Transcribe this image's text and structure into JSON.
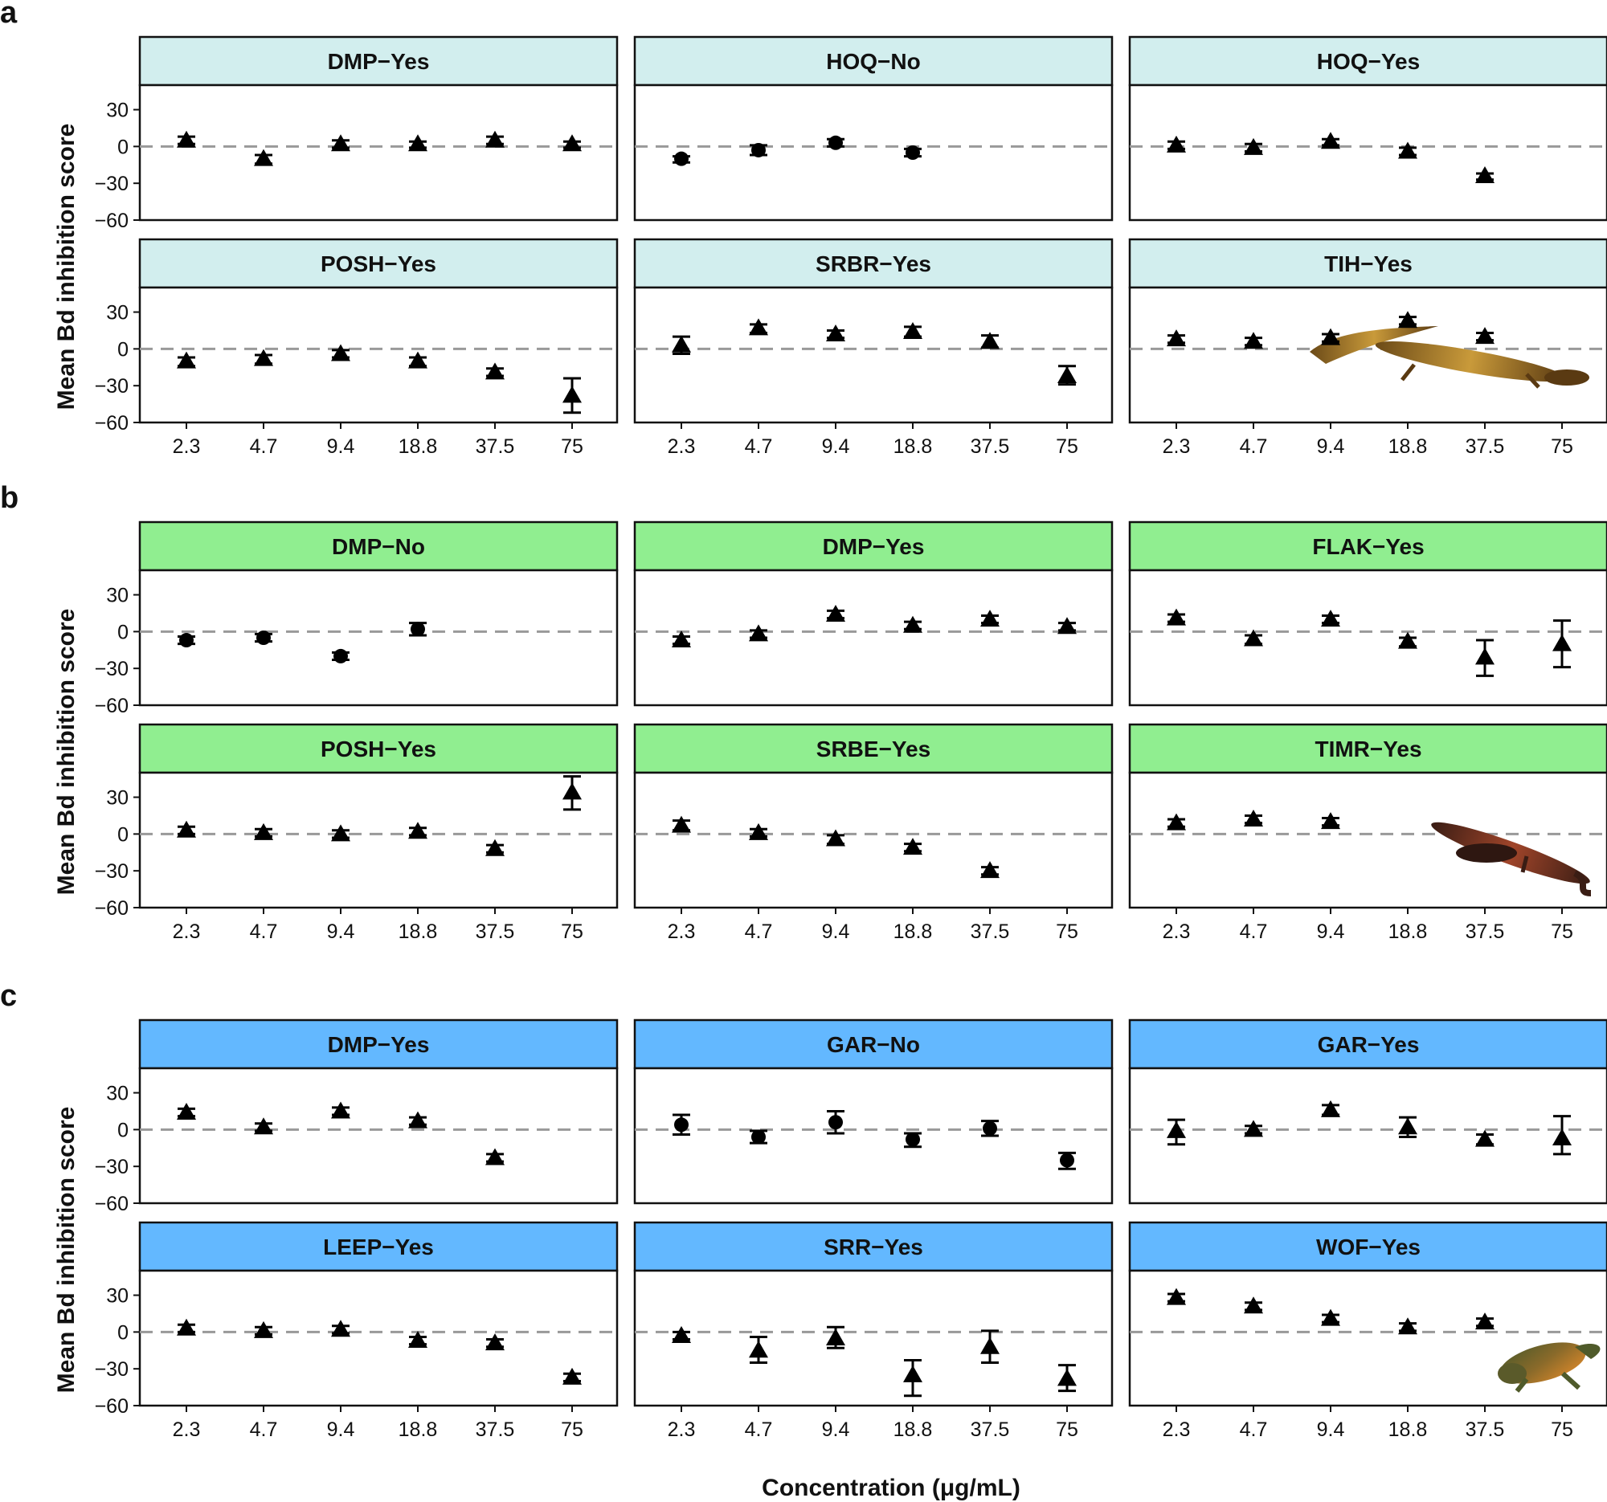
{
  "x_axis_title": "Concentration (μg/mL)",
  "chart_data": {
    "type": "scatter",
    "x_categories": [
      "2.3",
      "4.7",
      "9.4",
      "18.8",
      "37.5",
      "75"
    ],
    "y_ticks": [
      "30",
      "0",
      "−30",
      "−60"
    ],
    "y_tick_values": [
      30,
      0,
      -30,
      -60
    ],
    "ylim": [
      -60,
      50
    ],
    "ylabel": "Mean Bd inhibition score",
    "xlabel": "Concentration (μg/mL)",
    "reference_line": 0,
    "groups": [
      {
        "letter": "a",
        "strip_color": "#d2eeee",
        "panels": [
          {
            "title": "DMP−Yes",
            "points": [
              {
                "x": "2.3",
                "y": 5,
                "lo": 2,
                "hi": 8,
                "shape": "triangle"
              },
              {
                "x": "4.7",
                "y": -10,
                "lo": -14,
                "hi": -7,
                "shape": "triangle"
              },
              {
                "x": "9.4",
                "y": 2,
                "lo": -1,
                "hi": 5,
                "shape": "triangle"
              },
              {
                "x": "18.8",
                "y": 2,
                "lo": -1,
                "hi": 4,
                "shape": "triangle"
              },
              {
                "x": "37.5",
                "y": 5,
                "lo": 2,
                "hi": 8,
                "shape": "triangle"
              },
              {
                "x": "75",
                "y": 2,
                "lo": -1,
                "hi": 4,
                "shape": "triangle"
              }
            ]
          },
          {
            "title": "HOQ−No",
            "points": [
              {
                "x": "2.3",
                "y": -10,
                "lo": -13,
                "hi": -8,
                "shape": "circle"
              },
              {
                "x": "4.7",
                "y": -3,
                "lo": -7,
                "hi": 1,
                "shape": "circle"
              },
              {
                "x": "9.4",
                "y": 3,
                "lo": 0,
                "hi": 6,
                "shape": "circle"
              },
              {
                "x": "18.8",
                "y": -5,
                "lo": -8,
                "hi": -2,
                "shape": "circle"
              }
            ]
          },
          {
            "title": "HOQ−Yes",
            "points": [
              {
                "x": "2.3",
                "y": 1,
                "lo": -2,
                "hi": 4,
                "shape": "triangle"
              },
              {
                "x": "4.7",
                "y": -1,
                "lo": -4,
                "hi": 2,
                "shape": "triangle"
              },
              {
                "x": "9.4",
                "y": 4,
                "lo": 1,
                "hi": 6,
                "shape": "triangle"
              },
              {
                "x": "18.8",
                "y": -4,
                "lo": -7,
                "hi": -1,
                "shape": "triangle"
              },
              {
                "x": "37.5",
                "y": -24,
                "lo": -27,
                "hi": -22,
                "shape": "triangle"
              }
            ]
          },
          {
            "title": "POSH−Yes",
            "points": [
              {
                "x": "2.3",
                "y": -10,
                "lo": -14,
                "hi": -7,
                "shape": "triangle"
              },
              {
                "x": "4.7",
                "y": -8,
                "lo": -12,
                "hi": -5,
                "shape": "triangle"
              },
              {
                "x": "9.4",
                "y": -4,
                "lo": -7,
                "hi": -1,
                "shape": "triangle"
              },
              {
                "x": "18.8",
                "y": -10,
                "lo": -14,
                "hi": -7,
                "shape": "triangle"
              },
              {
                "x": "37.5",
                "y": -19,
                "lo": -22,
                "hi": -16,
                "shape": "triangle"
              },
              {
                "x": "75",
                "y": -38,
                "lo": -52,
                "hi": -24,
                "shape": "triangle"
              }
            ]
          },
          {
            "title": "SRBR−Yes",
            "points": [
              {
                "x": "2.3",
                "y": 3,
                "lo": -4,
                "hi": 10,
                "shape": "triangle"
              },
              {
                "x": "4.7",
                "y": 17,
                "lo": 13,
                "hi": 20,
                "shape": "triangle"
              },
              {
                "x": "9.4",
                "y": 12,
                "lo": 9,
                "hi": 15,
                "shape": "triangle"
              },
              {
                "x": "18.8",
                "y": 14,
                "lo": 10,
                "hi": 18,
                "shape": "triangle"
              },
              {
                "x": "37.5",
                "y": 6,
                "lo": 1,
                "hi": 11,
                "shape": "triangle"
              },
              {
                "x": "75",
                "y": -22,
                "lo": -29,
                "hi": -14,
                "shape": "triangle"
              }
            ]
          },
          {
            "title": "TIH−Yes",
            "image": "salamander-yellow",
            "points": [
              {
                "x": "2.3",
                "y": 8,
                "lo": 5,
                "hi": 11,
                "shape": "triangle"
              },
              {
                "x": "4.7",
                "y": 6,
                "lo": 3,
                "hi": 9,
                "shape": "triangle"
              },
              {
                "x": "9.4",
                "y": 9,
                "lo": 6,
                "hi": 12,
                "shape": "triangle"
              },
              {
                "x": "18.8",
                "y": 23,
                "lo": 20,
                "hi": 26,
                "shape": "triangle"
              },
              {
                "x": "37.5",
                "y": 10,
                "lo": 7,
                "hi": 13,
                "shape": "triangle"
              }
            ]
          }
        ]
      },
      {
        "letter": "b",
        "strip_color": "#90ee90",
        "panels": [
          {
            "title": "DMP−No",
            "points": [
              {
                "x": "2.3",
                "y": -7,
                "lo": -10,
                "hi": -4,
                "shape": "circle"
              },
              {
                "x": "4.7",
                "y": -5,
                "lo": -8,
                "hi": -2,
                "shape": "circle"
              },
              {
                "x": "9.4",
                "y": -20,
                "lo": -23,
                "hi": -17,
                "shape": "circle"
              },
              {
                "x": "18.8",
                "y": 2,
                "lo": -3,
                "hi": 7,
                "shape": "circle"
              }
            ]
          },
          {
            "title": "DMP−Yes",
            "points": [
              {
                "x": "2.3",
                "y": -7,
                "lo": -10,
                "hi": -4,
                "shape": "triangle"
              },
              {
                "x": "4.7",
                "y": -2,
                "lo": -5,
                "hi": 1,
                "shape": "triangle"
              },
              {
                "x": "9.4",
                "y": 14,
                "lo": 11,
                "hi": 17,
                "shape": "triangle"
              },
              {
                "x": "18.8",
                "y": 5,
                "lo": 2,
                "hi": 8,
                "shape": "triangle"
              },
              {
                "x": "37.5",
                "y": 10,
                "lo": 7,
                "hi": 13,
                "shape": "triangle"
              },
              {
                "x": "75",
                "y": 4,
                "lo": 1,
                "hi": 7,
                "shape": "triangle"
              }
            ]
          },
          {
            "title": "FLAK−Yes",
            "points": [
              {
                "x": "2.3",
                "y": 11,
                "lo": 8,
                "hi": 14,
                "shape": "triangle"
              },
              {
                "x": "4.7",
                "y": -6,
                "lo": -10,
                "hi": -3,
                "shape": "triangle"
              },
              {
                "x": "9.4",
                "y": 10,
                "lo": 7,
                "hi": 13,
                "shape": "triangle"
              },
              {
                "x": "18.8",
                "y": -8,
                "lo": -12,
                "hi": -5,
                "shape": "triangle"
              },
              {
                "x": "37.5",
                "y": -21,
                "lo": -36,
                "hi": -7,
                "shape": "triangle"
              },
              {
                "x": "75",
                "y": -10,
                "lo": -29,
                "hi": 9,
                "shape": "triangle"
              }
            ]
          },
          {
            "title": "POSH−Yes",
            "points": [
              {
                "x": "2.3",
                "y": 3,
                "lo": 0,
                "hi": 6,
                "shape": "triangle"
              },
              {
                "x": "4.7",
                "y": 1,
                "lo": -2,
                "hi": 4,
                "shape": "triangle"
              },
              {
                "x": "9.4",
                "y": 0,
                "lo": -3,
                "hi": 3,
                "shape": "triangle"
              },
              {
                "x": "18.8",
                "y": 2,
                "lo": -1,
                "hi": 5,
                "shape": "triangle"
              },
              {
                "x": "37.5",
                "y": -12,
                "lo": -15,
                "hi": -9,
                "shape": "triangle"
              },
              {
                "x": "75",
                "y": 34,
                "lo": 20,
                "hi": 47,
                "shape": "triangle"
              }
            ]
          },
          {
            "title": "SRBE−Yes",
            "points": [
              {
                "x": "2.3",
                "y": 7,
                "lo": 3,
                "hi": 11,
                "shape": "triangle"
              },
              {
                "x": "4.7",
                "y": 1,
                "lo": -2,
                "hi": 4,
                "shape": "triangle"
              },
              {
                "x": "9.4",
                "y": -4,
                "lo": -8,
                "hi": -1,
                "shape": "triangle"
              },
              {
                "x": "18.8",
                "y": -11,
                "lo": -14,
                "hi": -8,
                "shape": "triangle"
              },
              {
                "x": "37.5",
                "y": -30,
                "lo": -33,
                "hi": -27,
                "shape": "triangle"
              }
            ]
          },
          {
            "title": "TIMR−Yes",
            "image": "salamander-red",
            "points": [
              {
                "x": "2.3",
                "y": 9,
                "lo": 6,
                "hi": 12,
                "shape": "triangle"
              },
              {
                "x": "4.7",
                "y": 12,
                "lo": 9,
                "hi": 15,
                "shape": "triangle"
              },
              {
                "x": "9.4",
                "y": 10,
                "lo": 7,
                "hi": 13,
                "shape": "triangle"
              }
            ]
          }
        ]
      },
      {
        "letter": "c",
        "strip_color": "#63b8ff",
        "panels": [
          {
            "title": "DMP−Yes",
            "points": [
              {
                "x": "2.3",
                "y": 14,
                "lo": 11,
                "hi": 17,
                "shape": "triangle"
              },
              {
                "x": "4.7",
                "y": 2,
                "lo": -1,
                "hi": 5,
                "shape": "triangle"
              },
              {
                "x": "9.4",
                "y": 15,
                "lo": 12,
                "hi": 18,
                "shape": "triangle"
              },
              {
                "x": "18.8",
                "y": 7,
                "lo": 4,
                "hi": 10,
                "shape": "triangle"
              },
              {
                "x": "37.5",
                "y": -23,
                "lo": -26,
                "hi": -20,
                "shape": "triangle"
              }
            ]
          },
          {
            "title": "GAR−No",
            "points": [
              {
                "x": "2.3",
                "y": 4,
                "lo": -4,
                "hi": 12,
                "shape": "circle"
              },
              {
                "x": "4.7",
                "y": -6,
                "lo": -11,
                "hi": -1,
                "shape": "circle"
              },
              {
                "x": "9.4",
                "y": 6,
                "lo": -3,
                "hi": 15,
                "shape": "circle"
              },
              {
                "x": "18.8",
                "y": -8,
                "lo": -14,
                "hi": -3,
                "shape": "circle"
              },
              {
                "x": "37.5",
                "y": 1,
                "lo": -5,
                "hi": 7,
                "shape": "circle"
              },
              {
                "x": "75",
                "y": -25,
                "lo": -32,
                "hi": -19,
                "shape": "circle"
              }
            ]
          },
          {
            "title": "GAR−Yes",
            "points": [
              {
                "x": "2.3",
                "y": -1,
                "lo": -12,
                "hi": 8,
                "shape": "triangle"
              },
              {
                "x": "4.7",
                "y": 0,
                "lo": -3,
                "hi": 3,
                "shape": "triangle"
              },
              {
                "x": "9.4",
                "y": 16,
                "lo": 12,
                "hi": 20,
                "shape": "triangle"
              },
              {
                "x": "18.8",
                "y": 2,
                "lo": -6,
                "hi": 10,
                "shape": "triangle"
              },
              {
                "x": "37.5",
                "y": -8,
                "lo": -12,
                "hi": -4,
                "shape": "triangle"
              },
              {
                "x": "75",
                "y": -7,
                "lo": -20,
                "hi": 11,
                "shape": "triangle"
              }
            ]
          },
          {
            "title": "LEEP−Yes",
            "points": [
              {
                "x": "2.3",
                "y": 3,
                "lo": 0,
                "hi": 6,
                "shape": "triangle"
              },
              {
                "x": "4.7",
                "y": 1,
                "lo": -2,
                "hi": 4,
                "shape": "triangle"
              },
              {
                "x": "9.4",
                "y": 2,
                "lo": -1,
                "hi": 5,
                "shape": "triangle"
              },
              {
                "x": "18.8",
                "y": -7,
                "lo": -10,
                "hi": -4,
                "shape": "triangle"
              },
              {
                "x": "37.5",
                "y": -9,
                "lo": -12,
                "hi": -6,
                "shape": "triangle"
              },
              {
                "x": "75",
                "y": -37,
                "lo": -40,
                "hi": -34,
                "shape": "triangle"
              }
            ]
          },
          {
            "title": "SRR−Yes",
            "points": [
              {
                "x": "2.3",
                "y": -3,
                "lo": -6,
                "hi": 0,
                "shape": "triangle"
              },
              {
                "x": "4.7",
                "y": -15,
                "lo": -25,
                "hi": -4,
                "shape": "triangle"
              },
              {
                "x": "9.4",
                "y": -5,
                "lo": -13,
                "hi": 4,
                "shape": "triangle"
              },
              {
                "x": "18.8",
                "y": -35,
                "lo": -52,
                "hi": -23,
                "shape": "triangle"
              },
              {
                "x": "37.5",
                "y": -12,
                "lo": -25,
                "hi": 1,
                "shape": "triangle"
              },
              {
                "x": "75",
                "y": -38,
                "lo": -48,
                "hi": -27,
                "shape": "triangle"
              }
            ]
          },
          {
            "title": "WOF−Yes",
            "image": "newt",
            "points": [
              {
                "x": "2.3",
                "y": 28,
                "lo": 25,
                "hi": 31,
                "shape": "triangle"
              },
              {
                "x": "4.7",
                "y": 21,
                "lo": 18,
                "hi": 24,
                "shape": "triangle"
              },
              {
                "x": "9.4",
                "y": 11,
                "lo": 8,
                "hi": 14,
                "shape": "triangle"
              },
              {
                "x": "18.8",
                "y": 4,
                "lo": 1,
                "hi": 7,
                "shape": "triangle"
              },
              {
                "x": "37.5",
                "y": 8,
                "lo": 5,
                "hi": 11,
                "shape": "triangle"
              }
            ]
          }
        ]
      }
    ]
  }
}
